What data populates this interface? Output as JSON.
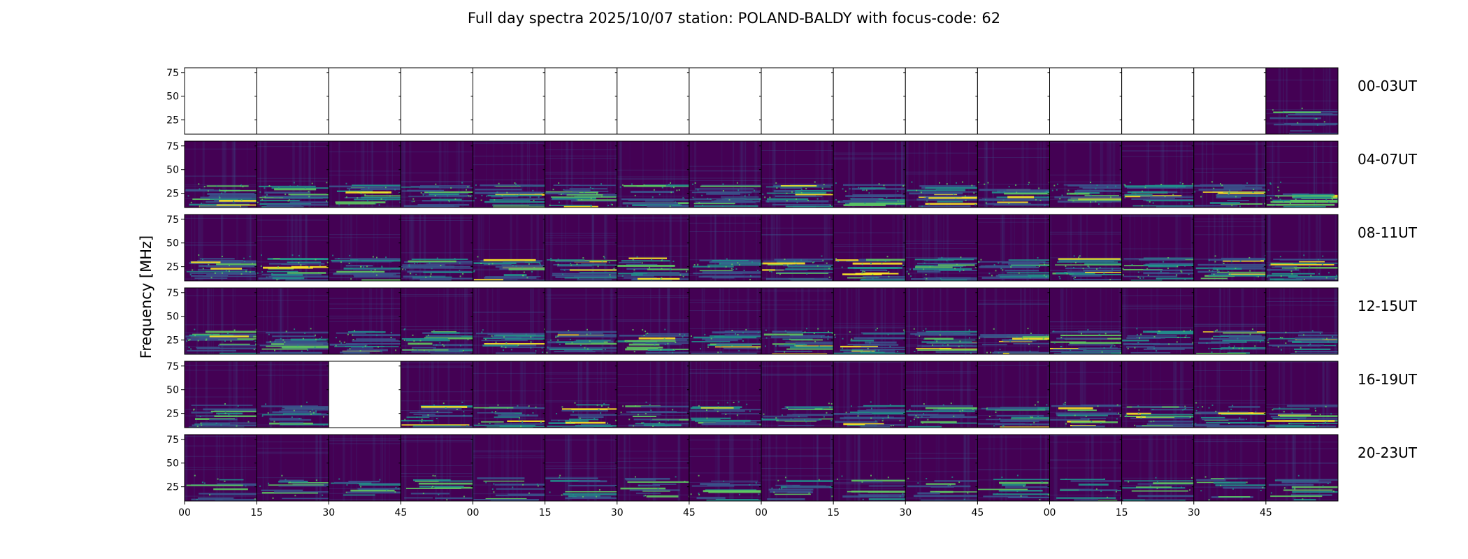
{
  "chart_data": {
    "type": "heatmap",
    "title": "Full day spectra 2025/10/07 station: POLAND-BALDY with focus-code: 62",
    "ylabel": "Frequency [MHz]",
    "xlabel": "",
    "ylim": [
      10,
      80
    ],
    "yticks": [
      25,
      50,
      75
    ],
    "xticks": [
      "00",
      "15",
      "30",
      "45",
      "00",
      "15",
      "30",
      "45",
      "00",
      "15",
      "30",
      "45",
      "00",
      "15",
      "30",
      "45"
    ],
    "rows": [
      {
        "label": "00-03UT",
        "panels": [
          0,
          0,
          0,
          0,
          0,
          0,
          0,
          0,
          0,
          0,
          0,
          0,
          0,
          0,
          0,
          1
        ]
      },
      {
        "label": "04-07UT",
        "panels": [
          1,
          1,
          1,
          1,
          1,
          1,
          1,
          1,
          1,
          1,
          1,
          1,
          1,
          1,
          1,
          1
        ]
      },
      {
        "label": "08-11UT",
        "panels": [
          1,
          1,
          1,
          1,
          1,
          1,
          1,
          1,
          1,
          1,
          1,
          1,
          1,
          1,
          1,
          1
        ]
      },
      {
        "label": "12-15UT",
        "panels": [
          1,
          1,
          1,
          1,
          1,
          1,
          1,
          1,
          1,
          1,
          1,
          1,
          1,
          1,
          1,
          1
        ]
      },
      {
        "label": "16-19UT",
        "panels": [
          1,
          1,
          0,
          1,
          1,
          1,
          1,
          1,
          1,
          1,
          1,
          1,
          1,
          1,
          1,
          1
        ]
      },
      {
        "label": "20-23UT",
        "panels": [
          1,
          1,
          1,
          1,
          1,
          1,
          1,
          1,
          1,
          1,
          1,
          1,
          1,
          1,
          1,
          1
        ]
      }
    ],
    "colormap": [
      "#440154",
      "#3b528b",
      "#21908c",
      "#5ec962",
      "#fde725"
    ],
    "empty_color": "#ffffff"
  }
}
